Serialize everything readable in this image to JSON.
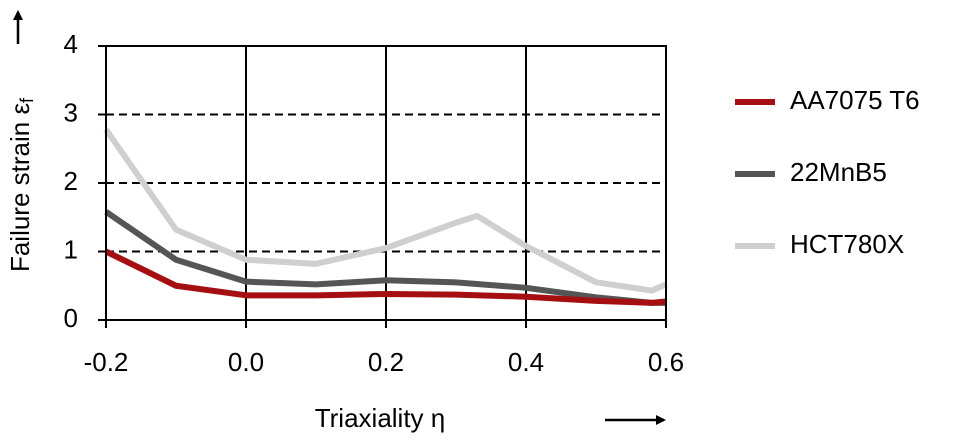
{
  "chart_data": {
    "type": "line",
    "ylabel": "Failure strain ε",
    "ylabel_subscript": "f",
    "xlabel": "Triaxiality η",
    "xlim": [
      -0.2,
      0.6
    ],
    "xticks": [
      -0.2,
      {
        "value": 0,
        "label": "0.0"
      },
      0.2,
      0.4,
      0.6
    ],
    "ylim": [
      0,
      4
    ],
    "yticks": [
      0,
      1,
      2,
      3,
      4
    ],
    "grid": true,
    "legend": "right",
    "series": [
      {
        "name": "AA7075 T6",
        "color": "#a50f12",
        "x": [
          -0.2,
          -0.1,
          0,
          0.1,
          0.2,
          0.3,
          0.4,
          0.5,
          0.58,
          0.6
        ],
        "values": [
          1.0,
          0.5,
          0.36,
          0.36,
          0.38,
          0.37,
          0.34,
          0.28,
          0.25,
          0.27
        ]
      },
      {
        "name": "22MnB5",
        "color": "#555555",
        "x": [
          -0.2,
          -0.1,
          0,
          0.1,
          0.2,
          0.3,
          0.4,
          0.5,
          0.58,
          0.6
        ],
        "values": [
          1.58,
          0.88,
          0.56,
          0.52,
          0.58,
          0.55,
          0.47,
          0.33,
          0.25,
          0.25
        ]
      },
      {
        "name": "HCT780X",
        "color": "#cfcfcf",
        "x": [
          -0.2,
          -0.1,
          0,
          0.1,
          0.2,
          0.3,
          0.33,
          0.4,
          0.5,
          0.58,
          0.6
        ],
        "values": [
          2.78,
          1.32,
          0.88,
          0.82,
          1.05,
          1.42,
          1.52,
          1.08,
          0.55,
          0.43,
          0.52
        ]
      }
    ]
  }
}
